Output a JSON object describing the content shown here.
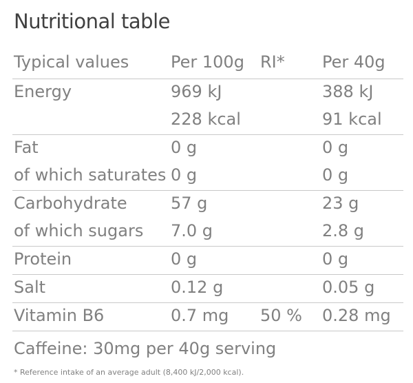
{
  "title": "Nutritional table",
  "header": {
    "col1": "Typical values",
    "col2": "Per 100g",
    "col3": "RI*",
    "col4": "Per 40g"
  },
  "rows": [
    {
      "lines": [
        {
          "label": "Energy",
          "per100": "969 kJ",
          "ri": "",
          "per40": "388 kJ"
        },
        {
          "label": "",
          "per100": "228 kcal",
          "ri": "",
          "per40": "91 kcal"
        }
      ]
    },
    {
      "lines": [
        {
          "label": "Fat",
          "per100": "0 g",
          "ri": "",
          "per40": "0 g"
        },
        {
          "label": "of which saturates",
          "per100": "0 g",
          "ri": "",
          "per40": "0 g"
        }
      ]
    },
    {
      "lines": [
        {
          "label": "Carbohydrate",
          "per100": "57 g",
          "ri": "",
          "per40": "23 g"
        },
        {
          "label": "of which sugars",
          "per100": "7.0 g",
          "ri": "",
          "per40": "2.8 g"
        }
      ]
    },
    {
      "lines": [
        {
          "label": "Protein",
          "per100": "0 g",
          "ri": "",
          "per40": "0 g"
        }
      ]
    },
    {
      "lines": [
        {
          "label": "Salt",
          "per100": "0.12 g",
          "ri": "",
          "per40": "0.05 g"
        }
      ]
    },
    {
      "lines": [
        {
          "label": "Vitamin B6",
          "per100": "0.7 mg",
          "ri": "50 %",
          "per40": "0.28 mg"
        }
      ]
    }
  ],
  "caffeine_note": "Caffeine: 30mg per 40g serving",
  "footnote": "* Reference intake of an average adult (8,400 kJ/2,000 kcal).",
  "colors": {
    "text": "#808080",
    "title": "#404040",
    "divider": "#c8c8c8"
  }
}
